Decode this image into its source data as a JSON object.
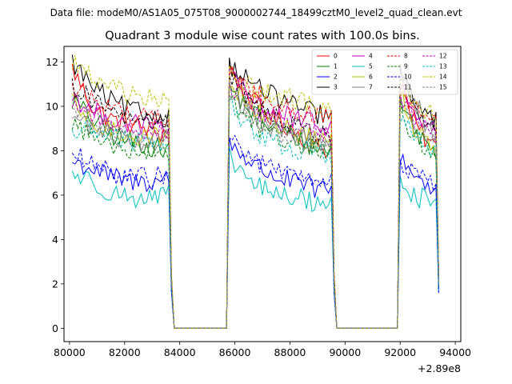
{
  "suptitle": "Data file: modeM0/AS1A05_075T08_9000002744_18499cztM0_level2_quad_clean.evt",
  "chart_data": {
    "type": "line",
    "title": "Quadrant 3 module wise count rates with 100.0s bins.",
    "xlabel": "",
    "ylabel": "",
    "x_offset_label": "+2.89e8",
    "xlim": [
      79800,
      94200
    ],
    "ylim": [
      -0.6,
      12.7
    ],
    "x_ticks": [
      80000,
      82000,
      84000,
      86000,
      88000,
      90000,
      92000,
      94000
    ],
    "x_tick_labels": [
      "80000",
      "82000",
      "84000",
      "86000",
      "88000",
      "90000",
      "92000",
      "94000"
    ],
    "y_ticks": [
      0,
      2,
      4,
      6,
      8,
      10,
      12
    ],
    "y_tick_labels": [
      "0",
      "2",
      "4",
      "6",
      "8",
      "10",
      "12"
    ],
    "bin_width_s": 100,
    "segments": [
      [
        80100,
        83700
      ],
      [
        85800,
        89600
      ],
      [
        92000,
        93400
      ]
    ],
    "gaps_zero": [
      [
        83800,
        85700
      ],
      [
        89700,
        91900
      ]
    ],
    "legend": {
      "placement": "upper-right",
      "columns": 4
    },
    "series": [
      {
        "name": "0",
        "color": "#ff0000",
        "style": "solid",
        "segments": [
          [
            11.7,
            10.0,
            9.4,
            9.2,
            8.9,
            8.7
          ],
          [
            11.8,
            10.3,
            9.5,
            9.0,
            8.2,
            8.0
          ],
          [
            10.9,
            9.3,
            8.5,
            8.0
          ]
        ]
      },
      {
        "name": "1",
        "color": "#008000",
        "style": "solid",
        "segments": [
          [
            10.3,
            9.4,
            8.7,
            8.4,
            8.2,
            8.0
          ],
          [
            10.9,
            9.8,
            9.1,
            8.7,
            8.2,
            8.0
          ],
          [
            10.4,
            9.1,
            8.3,
            7.9
          ]
        ]
      },
      {
        "name": "2",
        "color": "#0000ff",
        "style": "solid",
        "segments": [
          [
            7.5,
            7.2,
            6.8,
            6.6,
            6.6,
            6.8
          ],
          [
            8.4,
            7.5,
            6.9,
            6.6,
            6.3,
            6.2
          ],
          [
            7.8,
            7.0,
            6.5,
            6.3
          ]
        ]
      },
      {
        "name": "3",
        "color": "#000000",
        "style": "solid",
        "segments": [
          [
            12.0,
            10.9,
            10.2,
            9.8,
            9.6,
            9.5
          ],
          [
            11.9,
            11.1,
            10.5,
            10.1,
            9.7,
            9.5
          ],
          [
            11.7,
            10.1,
            9.6,
            9.3
          ]
        ]
      },
      {
        "name": "4",
        "color": "#bf00bf",
        "style": "solid",
        "segments": [
          [
            10.5,
            9.8,
            9.4,
            9.2,
            9.1,
            9.0
          ],
          [
            11.4,
            10.3,
            9.8,
            9.5,
            9.2,
            9.1
          ],
          [
            11.0,
            9.7,
            9.2,
            8.9
          ]
        ]
      },
      {
        "name": "5",
        "color": "#00bfbf",
        "style": "solid",
        "segments": [
          [
            7.0,
            6.6,
            6.1,
            5.9,
            5.8,
            6.1
          ],
          [
            7.7,
            6.6,
            6.1,
            5.9,
            5.7,
            5.6
          ],
          [
            6.6,
            6.0,
            5.8,
            5.6
          ]
        ]
      },
      {
        "name": "6",
        "color": "#bfbf00",
        "style": "solid",
        "segments": [
          [
            10.1,
            9.2,
            8.9,
            8.7,
            8.6,
            8.7
          ],
          [
            11.2,
            10.0,
            9.3,
            8.9,
            8.6,
            8.4
          ],
          [
            10.6,
            9.1,
            8.6,
            8.3
          ]
        ]
      },
      {
        "name": "7",
        "color": "#808080",
        "style": "solid",
        "segments": [
          [
            9.6,
            9.0,
            8.7,
            8.5,
            8.4,
            8.5
          ],
          [
            10.8,
            9.6,
            9.0,
            8.7,
            8.4,
            8.2
          ],
          [
            11.4,
            10.4,
            9.2,
            8.6
          ]
        ]
      },
      {
        "name": "8",
        "color": "#ff0000",
        "style": "dashed",
        "segments": [
          [
            10.8,
            10.4,
            9.9,
            9.6,
            9.5,
            9.4
          ],
          [
            11.5,
            10.7,
            10.2,
            9.9,
            9.6,
            9.4
          ],
          [
            10.7,
            9.9,
            9.5,
            9.2
          ]
        ]
      },
      {
        "name": "9",
        "color": "#008000",
        "style": "dashed",
        "segments": [
          [
            9.3,
            8.6,
            8.3,
            8.1,
            8.0,
            8.0
          ],
          [
            10.4,
            9.3,
            8.7,
            8.4,
            8.1,
            7.9
          ],
          [
            9.8,
            8.6,
            8.1,
            7.8
          ]
        ]
      },
      {
        "name": "10",
        "color": "#0000ff",
        "style": "dashed",
        "segments": [
          [
            7.9,
            7.3,
            7.0,
            6.8,
            6.8,
            6.9
          ],
          [
            8.6,
            7.7,
            7.2,
            6.9,
            6.6,
            6.5
          ],
          [
            7.6,
            7.0,
            6.6,
            6.3
          ]
        ]
      },
      {
        "name": "11",
        "color": "#000000",
        "style": "dashed",
        "segments": [
          [
            10.9,
            10.3,
            9.7,
            9.4,
            9.3,
            9.2
          ],
          [
            11.3,
            10.3,
            9.6,
            9.2,
            8.8,
            8.6
          ],
          [
            11.6,
            10.0,
            9.2,
            8.9
          ]
        ]
      },
      {
        "name": "12",
        "color": "#bf00bf",
        "style": "dashed",
        "segments": [
          [
            10.2,
            9.6,
            9.2,
            9.0,
            8.9,
            8.9
          ],
          [
            11.0,
            10.0,
            9.4,
            9.1,
            8.8,
            8.7
          ],
          [
            10.5,
            9.4,
            9.0,
            8.7
          ]
        ]
      },
      {
        "name": "13",
        "color": "#00bfbf",
        "style": "dashed",
        "segments": [
          [
            8.8,
            9.0,
            8.7,
            8.4,
            8.3,
            8.4
          ],
          [
            10.1,
            9.0,
            8.4,
            8.1,
            7.9,
            7.8
          ],
          [
            9.6,
            8.7,
            8.2,
            8.0
          ]
        ]
      },
      {
        "name": "14",
        "color": "#bfbf00",
        "style": "dashed",
        "segments": [
          [
            12.1,
            11.2,
            10.8,
            10.5,
            10.3,
            10.2
          ],
          [
            11.5,
            10.9,
            10.6,
            10.3,
            10.1,
            10.0
          ],
          [
            11.0,
            10.3,
            9.9,
            9.6
          ]
        ]
      },
      {
        "name": "15",
        "color": "#808080",
        "style": "dashed",
        "segments": [
          [
            10.0,
            9.3,
            8.9,
            8.6,
            8.5,
            8.6
          ],
          [
            10.7,
            9.6,
            9.0,
            8.6,
            8.3,
            8.1
          ],
          [
            10.1,
            9.0,
            8.5,
            8.2
          ]
        ]
      }
    ]
  }
}
